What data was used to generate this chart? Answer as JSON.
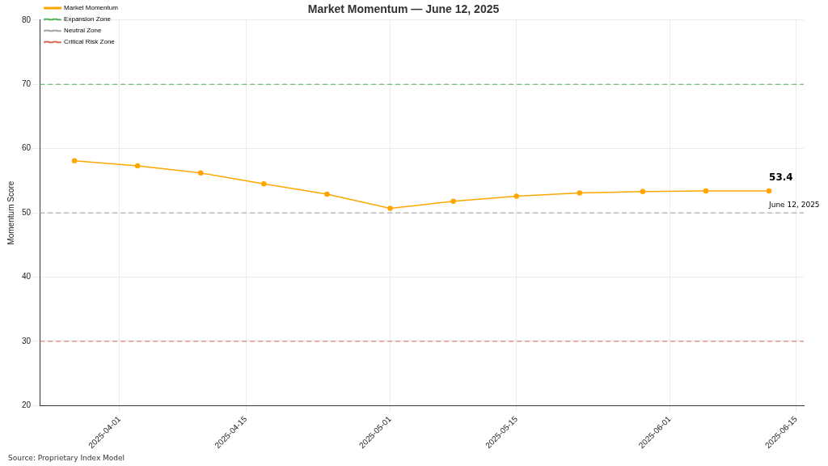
{
  "chart_data": {
    "type": "line",
    "title": "Market Momentum — June 12, 2025",
    "ylabel": "Momentum Score",
    "x": [
      "2025-03-27",
      "2025-04-03",
      "2025-04-10",
      "2025-04-17",
      "2025-04-24",
      "2025-05-01",
      "2025-05-08",
      "2025-05-15",
      "2025-05-22",
      "2025-05-29",
      "2025-06-05",
      "2025-06-12"
    ],
    "series": [
      {
        "name": "Market Momentum",
        "color": "#ffa500",
        "values": [
          58.1,
          57.3,
          56.2,
          54.5,
          52.9,
          50.7,
          51.8,
          52.6,
          53.1,
          53.3,
          53.4,
          53.4
        ]
      }
    ],
    "xlim": [
      "2025-03-23T03:36",
      "2025-06-15T20:24"
    ],
    "xticks": [
      "2025-04-01",
      "2025-04-15",
      "2025-05-01",
      "2025-05-15",
      "2025-06-01",
      "2025-06-15"
    ],
    "ylim": [
      20,
      80
    ],
    "yticks": [
      20,
      30,
      40,
      50,
      60,
      70,
      80
    ],
    "ref_lines": [
      {
        "axis": "y",
        "value": 70,
        "label": "Expansion Zone",
        "color": "#4caf50",
        "line_style": "dashed"
      },
      {
        "axis": "y",
        "value": 50,
        "label": "Neutral Zone",
        "color": "#9e9e9e",
        "line_style": "dashed"
      },
      {
        "axis": "y",
        "value": 30,
        "label": "Critical Risk Zone",
        "color": "#d9634c",
        "line_style": "dashed"
      }
    ],
    "annotations": [
      "53.4",
      "June 12, 2025",
      "Source: Proprietary Index Model"
    ],
    "grid": true,
    "legend": "top left",
    "marker": "circle",
    "line_style": "solid"
  }
}
